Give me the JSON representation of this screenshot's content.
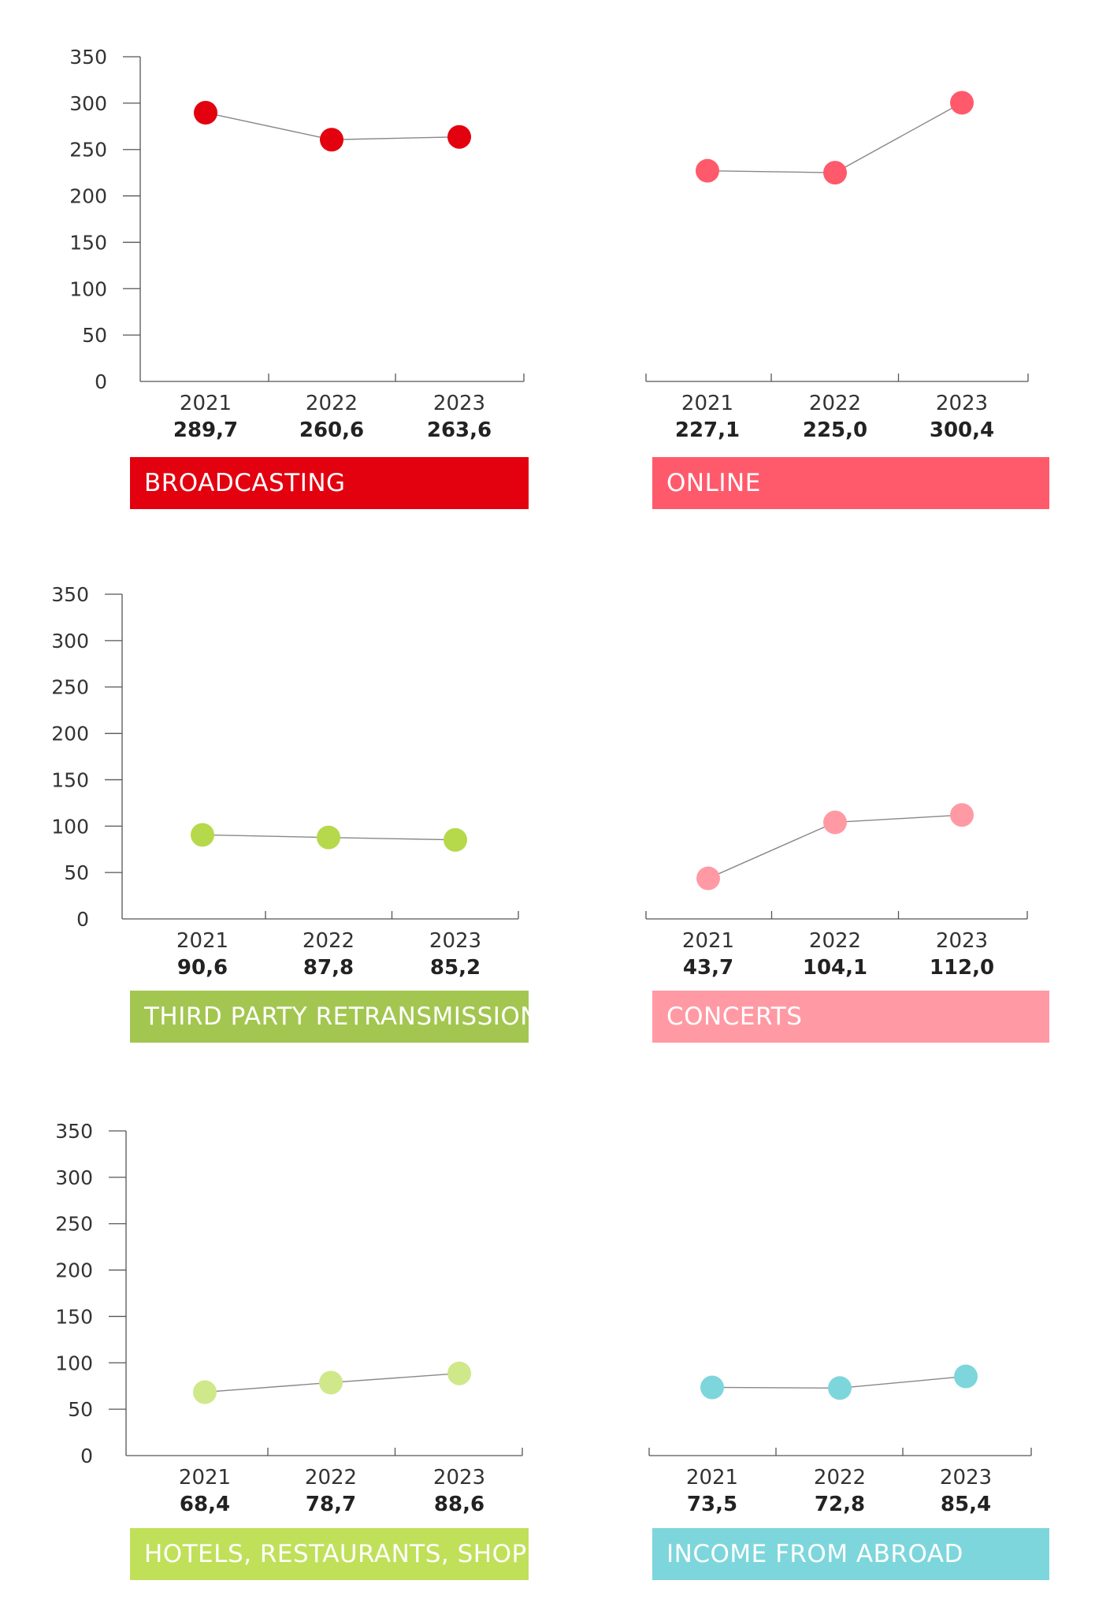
{
  "chart_data": [
    {
      "type": "line",
      "title": "BROADCASTING",
      "categories": [
        "2021",
        "2022",
        "2023"
      ],
      "value_labels": [
        "289,7",
        "260,6",
        "263,6"
      ],
      "values": [
        289.7,
        260.6,
        263.6
      ],
      "yticks": [
        "0",
        "50",
        "100",
        "150",
        "200",
        "250",
        "300",
        "350"
      ],
      "ylim": [
        0,
        350
      ],
      "show_y_axis": true,
      "color": "#e3000f",
      "banner_color": "#e3000f"
    },
    {
      "type": "line",
      "title": "ONLINE",
      "categories": [
        "2021",
        "2022",
        "2023"
      ],
      "value_labels": [
        "227,1",
        "225,0",
        "300,4"
      ],
      "values": [
        227.1,
        225.0,
        300.4
      ],
      "yticks": [],
      "ylim": [
        0,
        350
      ],
      "show_y_axis": false,
      "color": "#ff5a6b",
      "banner_color": "#ff5a6b"
    },
    {
      "type": "line",
      "title": "THIRD PARTY RETRANSMISSION",
      "categories": [
        "2021",
        "2022",
        "2023"
      ],
      "value_labels": [
        "90,6",
        "87,8",
        "85,2"
      ],
      "values": [
        90.6,
        87.8,
        85.2
      ],
      "yticks": [
        "0",
        "50",
        "100",
        "150",
        "200",
        "250",
        "300",
        "350"
      ],
      "ylim": [
        0,
        350
      ],
      "show_y_axis": true,
      "color": "#b5d94a",
      "banner_color": "#a3c650"
    },
    {
      "type": "line",
      "title": "CONCERTS",
      "categories": [
        "2021",
        "2022",
        "2023"
      ],
      "value_labels": [
        "43,7",
        "104,1",
        "112,0"
      ],
      "values": [
        43.7,
        104.1,
        112.0
      ],
      "yticks": [],
      "ylim": [
        0,
        350
      ],
      "show_y_axis": false,
      "color": "#ff9aa5",
      "banner_color": "#ff9aa5"
    },
    {
      "type": "line",
      "title": "HOTELS, RESTAURANTS, SHOPS",
      "categories": [
        "2021",
        "2022",
        "2023"
      ],
      "value_labels": [
        "68,4",
        "78,7",
        "88,6"
      ],
      "values": [
        68.4,
        78.7,
        88.6
      ],
      "yticks": [
        "0",
        "50",
        "100",
        "150",
        "200",
        "250",
        "300",
        "350"
      ],
      "ylim": [
        0,
        350
      ],
      "show_y_axis": true,
      "color": "#cfe88a",
      "banner_color": "#c0e05a"
    },
    {
      "type": "line",
      "title": "INCOME FROM ABROAD",
      "categories": [
        "2021",
        "2022",
        "2023"
      ],
      "value_labels": [
        "73,5",
        "72,8",
        "85,4"
      ],
      "values": [
        73.5,
        72.8,
        85.4
      ],
      "yticks": [],
      "ylim": [
        0,
        350
      ],
      "show_y_axis": false,
      "color": "#7dd6dc",
      "banner_color": "#7dd6dc"
    }
  ]
}
